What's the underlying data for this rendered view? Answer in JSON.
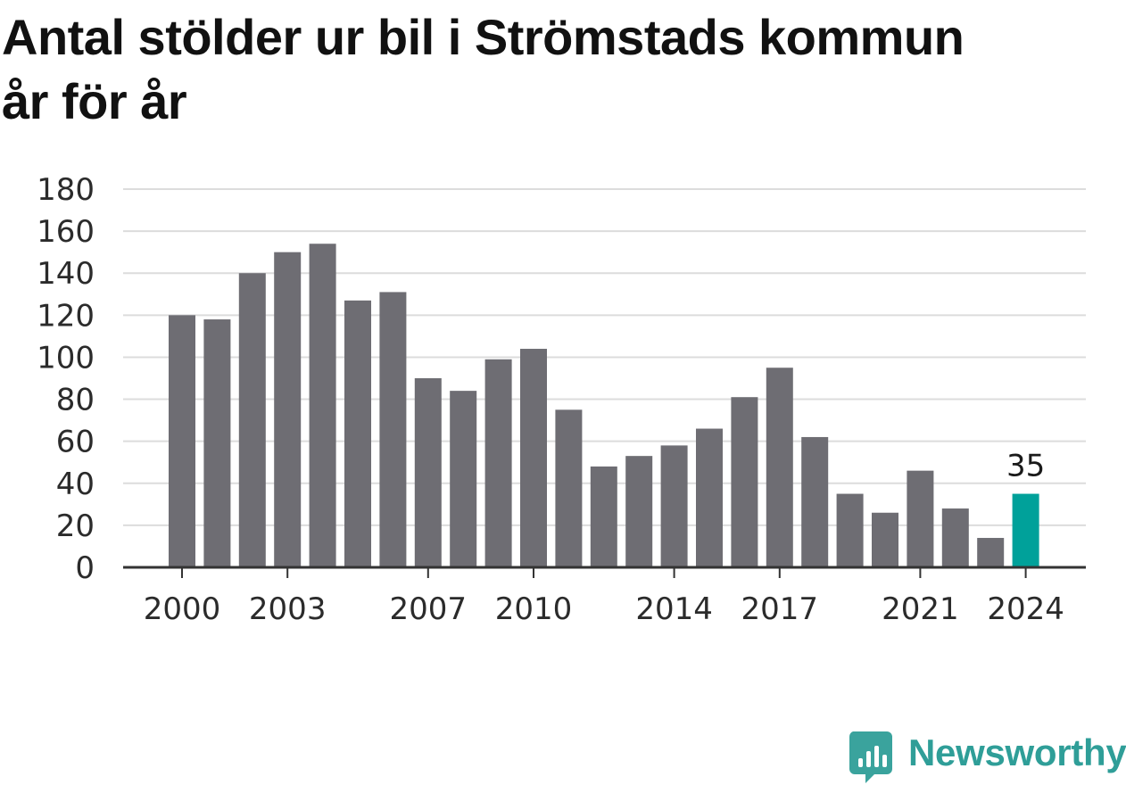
{
  "chart_data": {
    "type": "bar",
    "title": "Antal stölder ur bil i Strömstads kommun år för år",
    "xlabel": "",
    "ylabel": "",
    "categories": [
      "2000",
      "2001",
      "2002",
      "2003",
      "2004",
      "2005",
      "2006",
      "2007",
      "2008",
      "2009",
      "2010",
      "2011",
      "2012",
      "2013",
      "2014",
      "2015",
      "2016",
      "2017",
      "2018",
      "2019",
      "2020",
      "2021",
      "2022",
      "2023",
      "2024"
    ],
    "values": [
      120,
      118,
      140,
      150,
      154,
      127,
      131,
      90,
      84,
      99,
      104,
      75,
      48,
      53,
      58,
      66,
      81,
      95,
      62,
      35,
      26,
      46,
      28,
      14,
      35
    ],
    "ylim": [
      0,
      180
    ],
    "yticks": [
      0,
      20,
      40,
      60,
      80,
      100,
      120,
      140,
      160,
      180
    ],
    "xtick_labels": [
      "2000",
      "2003",
      "2007",
      "2010",
      "2014",
      "2017",
      "2021",
      "2024"
    ],
    "highlight": {
      "category": "2024",
      "label": "35"
    },
    "grid": true,
    "legend": "none",
    "colors": {
      "bar": "#6e6d73",
      "highlight": "#00a19a",
      "grid": "#dcdcdc",
      "axis": "#333333"
    }
  },
  "logo": {
    "text": "Newsworthy",
    "icon": "newsworthy-logo-icon",
    "color": "#2f9e98"
  }
}
